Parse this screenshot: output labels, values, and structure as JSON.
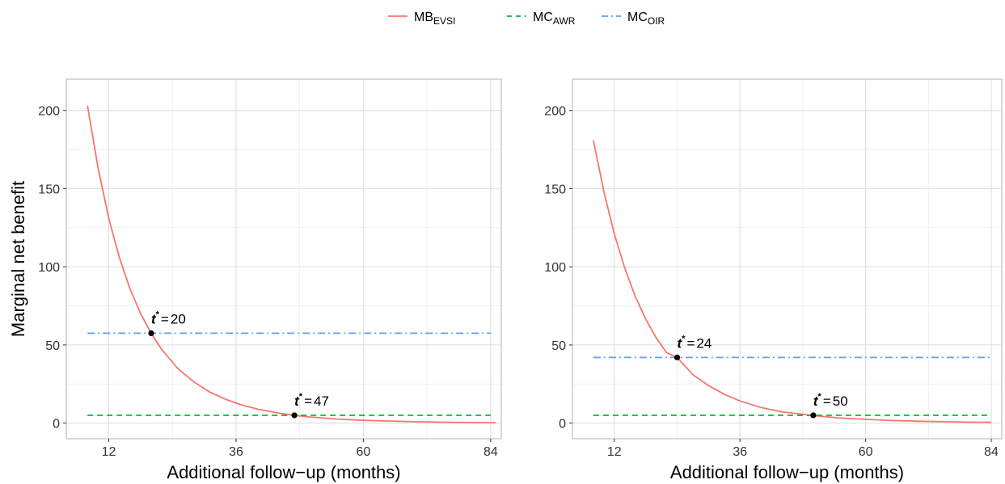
{
  "chart_data": [
    {
      "type": "line",
      "panel": "left",
      "xlabel": "Additional follow−up (months)",
      "ylabel": "Marginal net benefit",
      "xlim": [
        4,
        86
      ],
      "ylim": [
        -10,
        220
      ],
      "xticks": [
        12,
        36,
        60,
        84
      ],
      "yticks": [
        0,
        50,
        100,
        150,
        200
      ],
      "series": [
        {
          "name": "MB_EVSI",
          "color": "#F8766D",
          "style": "solid",
          "x": [
            8,
            10,
            12,
            14,
            16,
            18,
            20,
            22,
            25,
            28,
            31,
            34,
            37,
            40,
            44,
            47,
            50,
            55,
            60,
            65,
            70,
            75,
            80,
            85
          ],
          "y": [
            203,
            163,
            131,
            106,
            86,
            70,
            57.5,
            47,
            35,
            26.5,
            20,
            15.3,
            11.7,
            9,
            6.4,
            5,
            3.9,
            2.6,
            1.8,
            1.3,
            0.9,
            0.6,
            0.4,
            0.3
          ]
        },
        {
          "name": "MC_AWR",
          "color": "#00BA38",
          "style": "dashed",
          "x": [
            8,
            84
          ],
          "y": [
            5,
            5
          ]
        },
        {
          "name": "MC_OIR",
          "color": "#619CFF",
          "style": "dotdash",
          "x": [
            8,
            84
          ],
          "y": [
            57.5,
            57.5
          ]
        }
      ],
      "points": [
        {
          "x": 20,
          "y": 57.5,
          "label_value": "20"
        },
        {
          "x": 47,
          "y": 5,
          "label_value": "47"
        }
      ]
    },
    {
      "type": "line",
      "panel": "right",
      "xlabel": "Additional follow−up (months)",
      "ylabel": "",
      "xlim": [
        4,
        86
      ],
      "ylim": [
        -10,
        220
      ],
      "xticks": [
        12,
        36,
        60,
        84
      ],
      "yticks": [
        0,
        50,
        100,
        150,
        200
      ],
      "series": [
        {
          "name": "MB_EVSI",
          "color": "#F8766D",
          "style": "solid",
          "x": [
            8,
            10,
            12,
            14,
            16,
            18,
            20,
            22,
            24,
            27,
            30,
            33,
            36,
            40,
            44,
            47,
            50,
            55,
            60,
            65,
            70,
            75,
            80,
            84
          ],
          "y": [
            181,
            148,
            121,
            99,
            81,
            66.5,
            54.5,
            45,
            42,
            31,
            24,
            18.5,
            14.2,
            10,
            7.2,
            6,
            4.8,
            3.3,
            2.4,
            1.7,
            1.2,
            0.9,
            0.6,
            0.5
          ]
        },
        {
          "name": "MC_AWR",
          "color": "#00BA38",
          "style": "dashed",
          "x": [
            8,
            84
          ],
          "y": [
            5,
            5
          ]
        },
        {
          "name": "MC_OIR",
          "color": "#619CFF",
          "style": "dotdash",
          "x": [
            8,
            84
          ],
          "y": [
            42,
            42
          ]
        }
      ],
      "points": [
        {
          "x": 24,
          "y": 42,
          "label_value": "24"
        },
        {
          "x": 50,
          "y": 5,
          "label_value": "50"
        }
      ]
    }
  ],
  "legend": {
    "placement": "top",
    "items": [
      {
        "main": "MB",
        "sub": "EVSI",
        "color": "#F8766D",
        "style": "solid"
      },
      {
        "main": "MC",
        "sub": "AWR",
        "color": "#00BA38",
        "style": "dashed"
      },
      {
        "main": "MC",
        "sub": "OIR",
        "color": "#619CFF",
        "style": "dotdash"
      }
    ]
  },
  "annotation": {
    "symbol": "t",
    "superscript": "*",
    "equals": "="
  }
}
